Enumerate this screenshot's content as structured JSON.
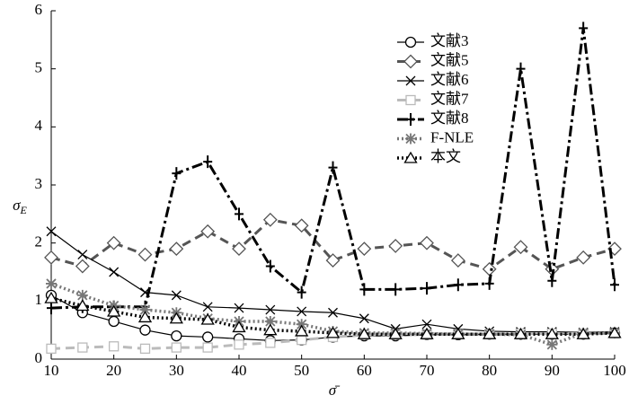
{
  "chart_data": {
    "type": "line",
    "x_label": "σ̄",
    "y_label": "σ",
    "y_label_sub": "E",
    "x": [
      10,
      15,
      20,
      25,
      30,
      35,
      40,
      45,
      50,
      55,
      60,
      65,
      70,
      75,
      80,
      85,
      90,
      95,
      100
    ],
    "xlim": [
      10,
      100
    ],
    "xticks": [
      10,
      20,
      30,
      40,
      50,
      60,
      70,
      80,
      90,
      100
    ],
    "ylim": [
      0,
      6
    ],
    "yticks": [
      0,
      1,
      2,
      3,
      4,
      5,
      6
    ],
    "legend": "upper-right",
    "series": [
      {
        "name": "文献3",
        "color": "#000000",
        "marker": "circle",
        "line": "solid",
        "values": [
          1.1,
          0.8,
          0.65,
          0.5,
          0.4,
          0.38,
          0.35,
          0.32,
          0.33,
          0.38,
          0.4,
          0.4,
          0.42,
          0.42,
          0.43,
          0.43,
          0.43,
          0.43,
          0.45
        ]
      },
      {
        "name": "文献5",
        "color": "#555555",
        "marker": "diamond",
        "line": "dash",
        "values": [
          1.75,
          1.6,
          2.0,
          1.8,
          1.9,
          2.2,
          1.9,
          2.4,
          2.3,
          1.7,
          1.9,
          1.95,
          2.0,
          1.7,
          1.55,
          1.93,
          1.55,
          1.75,
          1.9
        ]
      },
      {
        "name": "文献6",
        "color": "#000000",
        "marker": "x",
        "line": "solid",
        "values": [
          2.2,
          1.8,
          1.5,
          1.15,
          1.1,
          0.9,
          0.88,
          0.85,
          0.82,
          0.8,
          0.7,
          0.52,
          0.6,
          0.52,
          0.48,
          0.47,
          0.47,
          0.46,
          0.47
        ]
      },
      {
        "name": "文献7",
        "color": "#bbbbbb",
        "marker": "square",
        "line": "dash",
        "values": [
          0.18,
          0.2,
          0.22,
          0.18,
          0.2,
          0.2,
          0.25,
          0.28,
          0.33,
          0.38,
          0.42,
          0.42,
          0.42,
          0.43,
          0.43,
          0.44,
          0.44,
          0.44,
          0.44
        ]
      },
      {
        "name": "文献8",
        "color": "#000000",
        "marker": "plus",
        "line": "dashdot",
        "values": [
          0.88,
          0.9,
          0.9,
          0.9,
          3.2,
          3.4,
          2.5,
          1.6,
          1.15,
          3.3,
          1.2,
          1.2,
          1.22,
          1.28,
          1.3,
          5.0,
          1.35,
          5.7,
          1.28
        ]
      },
      {
        "name": "F-NLE",
        "color": "#777777",
        "marker": "asterisk",
        "line": "dot",
        "values": [
          1.3,
          1.1,
          0.92,
          0.85,
          0.8,
          0.7,
          0.65,
          0.65,
          0.6,
          0.48,
          0.45,
          0.45,
          0.44,
          0.43,
          0.43,
          0.42,
          0.25,
          0.45,
          0.45
        ]
      },
      {
        "name": "本文",
        "color": "#000000",
        "marker": "triangle",
        "line": "dot",
        "values": [
          1.05,
          0.92,
          0.82,
          0.72,
          0.7,
          0.68,
          0.55,
          0.5,
          0.48,
          0.45,
          0.43,
          0.43,
          0.43,
          0.43,
          0.43,
          0.43,
          0.43,
          0.43,
          0.45
        ]
      }
    ]
  }
}
